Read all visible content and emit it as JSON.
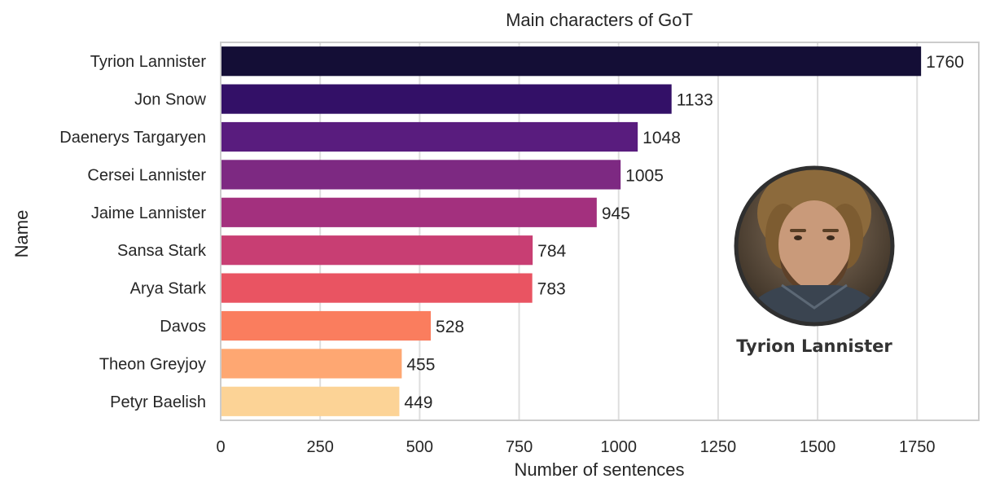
{
  "chart_data": {
    "type": "bar",
    "orientation": "horizontal",
    "title": "Main characters of GoT",
    "xlabel": "Number of sentences",
    "ylabel": "Name",
    "categories": [
      "Tyrion Lannister",
      "Jon Snow",
      "Daenerys Targaryen",
      "Cersei Lannister",
      "Jaime Lannister",
      "Sansa Stark",
      "Arya Stark",
      "Davos",
      "Theon Greyjoy",
      "Petyr Baelish"
    ],
    "values": [
      1760,
      1133,
      1048,
      1005,
      945,
      784,
      783,
      528,
      455,
      449
    ],
    "value_labels": [
      "1760",
      "1133",
      "1048",
      "1005",
      "945",
      "784",
      "783",
      "528",
      "455",
      "449"
    ],
    "xlim": [
      0,
      1905
    ],
    "xticks": [
      0,
      250,
      500,
      750,
      1000,
      1250,
      1500,
      1750
    ],
    "xtick_labels": [
      "0",
      "250",
      "500",
      "750",
      "1000",
      "1250",
      "1500",
      "1750"
    ],
    "grid": "vertical",
    "colors": [
      "#140e36",
      "#331067",
      "#591c7e",
      "#7d2982",
      "#a3307e",
      "#c83e73",
      "#e95462",
      "#fa7d5e",
      "#fea772",
      "#fcd396"
    ],
    "inset": {
      "label": "Tyrion Lannister",
      "image": "portrait-of-tyrion-lannister"
    }
  }
}
